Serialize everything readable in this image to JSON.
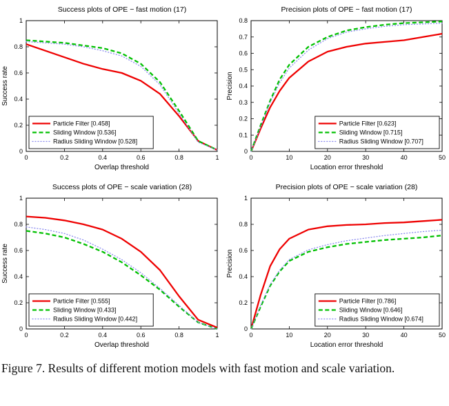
{
  "caption": {
    "text": "Figure 7. Results of different motion models with fast motion and scale variation."
  },
  "chart_data": [
    {
      "type": "line",
      "title": "Success plots of OPE − fast motion (17)",
      "xlabel": "Overlap threshold",
      "ylabel": "Success rate",
      "xlim": [
        0,
        1
      ],
      "ylim": [
        0,
        1
      ],
      "xticks": [
        0,
        0.2,
        0.4,
        0.6,
        0.8,
        1
      ],
      "yticks": [
        0,
        0.2,
        0.4,
        0.6,
        0.8,
        1
      ],
      "grid": false,
      "legend_position": "bottom-left",
      "x": [
        0,
        0.1,
        0.2,
        0.3,
        0.4,
        0.5,
        0.6,
        0.7,
        0.8,
        0.9,
        1.0
      ],
      "series": [
        {
          "label": "Particle Filter [0.458]",
          "color": "#ee0000",
          "style": "solid",
          "width": 2.3,
          "values": [
            0.82,
            0.77,
            0.72,
            0.67,
            0.63,
            0.6,
            0.54,
            0.44,
            0.27,
            0.08,
            0.01
          ]
        },
        {
          "label": "Sliding Window [0.536]",
          "color": "#00c000",
          "style": "dashed",
          "width": 2.3,
          "values": [
            0.85,
            0.84,
            0.83,
            0.81,
            0.79,
            0.75,
            0.67,
            0.53,
            0.31,
            0.08,
            0.01
          ]
        },
        {
          "label": "Radius Sliding Window [0.528]",
          "color": "#8888ee",
          "style": "dotted",
          "width": 1.3,
          "values": [
            0.84,
            0.83,
            0.82,
            0.8,
            0.77,
            0.73,
            0.65,
            0.51,
            0.29,
            0.07,
            0.01
          ]
        }
      ]
    },
    {
      "type": "line",
      "title": "Precision plots of OPE − fast motion (17)",
      "xlabel": "Location error threshold",
      "ylabel": "Precision",
      "xlim": [
        0,
        50
      ],
      "ylim": [
        0,
        0.8
      ],
      "xticks": [
        0,
        10,
        20,
        30,
        40,
        50
      ],
      "yticks": [
        0,
        0.1,
        0.2,
        0.3,
        0.4,
        0.5,
        0.6,
        0.7,
        0.8
      ],
      "grid": false,
      "legend_position": "bottom-right",
      "x": [
        0,
        2.5,
        5,
        7.5,
        10,
        15,
        20,
        25,
        30,
        35,
        40,
        45,
        50
      ],
      "series": [
        {
          "label": "Particle Filter [0.623]",
          "color": "#ee0000",
          "style": "solid",
          "width": 2.3,
          "values": [
            0,
            0.14,
            0.27,
            0.37,
            0.45,
            0.55,
            0.61,
            0.64,
            0.66,
            0.67,
            0.68,
            0.7,
            0.72
          ]
        },
        {
          "label": "Sliding Window [0.715]",
          "color": "#00c000",
          "style": "dashed",
          "width": 2.3,
          "values": [
            0,
            0.16,
            0.31,
            0.44,
            0.53,
            0.64,
            0.7,
            0.74,
            0.76,
            0.775,
            0.785,
            0.79,
            0.795
          ]
        },
        {
          "label": "Radius Sliding Window [0.707]",
          "color": "#8888ee",
          "style": "dotted",
          "width": 1.3,
          "values": [
            0,
            0.15,
            0.3,
            0.42,
            0.51,
            0.62,
            0.69,
            0.73,
            0.75,
            0.765,
            0.775,
            0.78,
            0.785
          ]
        }
      ]
    },
    {
      "type": "line",
      "title": "Success plots of OPE − scale variation (28)",
      "xlabel": "Overlap threshold",
      "ylabel": "Success rate",
      "xlim": [
        0,
        1
      ],
      "ylim": [
        0,
        1
      ],
      "xticks": [
        0,
        0.2,
        0.4,
        0.6,
        0.8,
        1
      ],
      "yticks": [
        0,
        0.2,
        0.4,
        0.6,
        0.8,
        1
      ],
      "grid": false,
      "legend_position": "bottom-left",
      "x": [
        0,
        0.1,
        0.2,
        0.3,
        0.4,
        0.5,
        0.6,
        0.7,
        0.8,
        0.9,
        1.0
      ],
      "series": [
        {
          "label": "Particle Filter [0.555]",
          "color": "#ee0000",
          "style": "solid",
          "width": 2.3,
          "values": [
            0.86,
            0.85,
            0.83,
            0.8,
            0.76,
            0.69,
            0.59,
            0.45,
            0.25,
            0.07,
            0.01
          ]
        },
        {
          "label": "Sliding Window [0.433]",
          "color": "#00c000",
          "style": "dashed",
          "width": 2.3,
          "values": [
            0.75,
            0.73,
            0.7,
            0.65,
            0.59,
            0.51,
            0.41,
            0.3,
            0.17,
            0.05,
            0.0
          ]
        },
        {
          "label": "Radius Sliding Window [0.442]",
          "color": "#8888ee",
          "style": "dotted",
          "width": 1.3,
          "values": [
            0.78,
            0.76,
            0.73,
            0.68,
            0.61,
            0.53,
            0.43,
            0.31,
            0.18,
            0.05,
            0.0
          ]
        }
      ]
    },
    {
      "type": "line",
      "title": "Precision plots of OPE − scale variation (28)",
      "xlabel": "Location error threshold",
      "ylabel": "Precision",
      "xlim": [
        0,
        50
      ],
      "ylim": [
        0,
        1
      ],
      "xticks": [
        0,
        10,
        20,
        30,
        40,
        50
      ],
      "yticks": [
        0,
        0.2,
        0.4,
        0.6,
        0.8,
        1
      ],
      "grid": false,
      "legend_position": "bottom-right",
      "x": [
        0,
        2.5,
        5,
        7.5,
        10,
        15,
        20,
        25,
        30,
        35,
        40,
        45,
        50
      ],
      "series": [
        {
          "label": "Particle Filter [0.786]",
          "color": "#ee0000",
          "style": "solid",
          "width": 2.3,
          "values": [
            0,
            0.26,
            0.48,
            0.61,
            0.69,
            0.76,
            0.785,
            0.795,
            0.8,
            0.81,
            0.815,
            0.825,
            0.835
          ]
        },
        {
          "label": "Sliding Window [0.646]",
          "color": "#00c000",
          "style": "dashed",
          "width": 2.3,
          "values": [
            0,
            0.17,
            0.33,
            0.44,
            0.52,
            0.59,
            0.625,
            0.65,
            0.665,
            0.68,
            0.69,
            0.7,
            0.715
          ]
        },
        {
          "label": "Radius Sliding Window [0.674]",
          "color": "#8888ee",
          "style": "dotted",
          "width": 1.3,
          "values": [
            0,
            0.18,
            0.34,
            0.45,
            0.53,
            0.605,
            0.645,
            0.675,
            0.695,
            0.715,
            0.73,
            0.745,
            0.755
          ]
        }
      ]
    }
  ]
}
